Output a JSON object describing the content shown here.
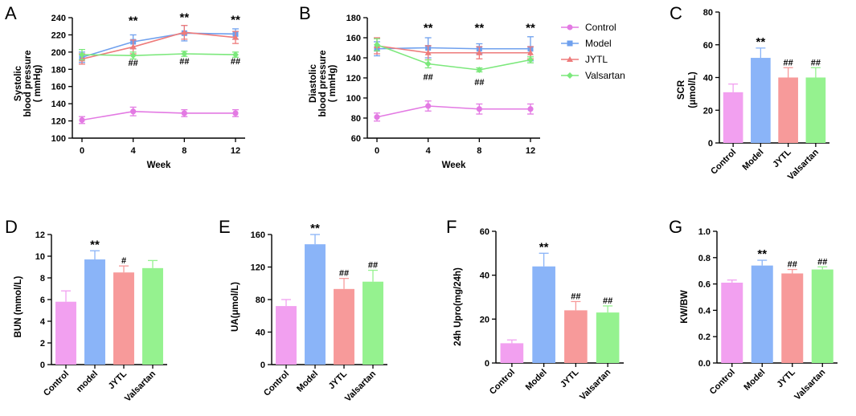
{
  "figure": {
    "colors": {
      "Control": "#F2A0F0",
      "Model": "#8AB4F8",
      "JYTL": "#F79A9A",
      "Valsartan": "#95F28F",
      "control_line": "#E37AE3",
      "model_line": "#6FA0EE",
      "jytl_line": "#EE7B7B",
      "valsartan_line": "#7CE87C"
    },
    "legend": [
      "Control",
      "Model",
      "JYTL",
      "Valsartan"
    ]
  },
  "chart_data": [
    {
      "panel": "A",
      "type": "line",
      "xlabel": "Week",
      "ylabel": "Systolic blood pressure ( mmHg)",
      "ylabel_lines": [
        "Systolic",
        "blood pressure",
        "( mmHg)"
      ],
      "x": [
        0,
        4,
        8,
        12
      ],
      "xticks": [
        "0",
        "4",
        "8",
        "12"
      ],
      "ylim": [
        100,
        240
      ],
      "yticks": [
        "100",
        "120",
        "140",
        "160",
        "180",
        "200",
        "220",
        "240"
      ],
      "series": [
        {
          "name": "Control",
          "values": [
            121,
            131,
            129,
            129
          ],
          "err": [
            4,
            5,
            4,
            4
          ]
        },
        {
          "name": "Model",
          "values": [
            194,
            212,
            222,
            221
          ],
          "err": [
            6,
            8,
            9,
            6
          ]
        },
        {
          "name": "JYTL",
          "values": [
            192,
            206,
            223,
            217
          ],
          "err": [
            6,
            8,
            8,
            7
          ]
        },
        {
          "name": "Valsartan",
          "values": [
            197,
            196,
            198,
            197
          ],
          "err": [
            6,
            4,
            3,
            3
          ]
        }
      ],
      "annotations": [
        {
          "x": 4,
          "y": 232,
          "text": "**",
          "kind": "star"
        },
        {
          "x": 8,
          "y": 236,
          "text": "**",
          "kind": "star"
        },
        {
          "x": 12,
          "y": 233,
          "text": "**",
          "kind": "star"
        },
        {
          "x": 4,
          "y": 184,
          "text": "##",
          "kind": "hash"
        },
        {
          "x": 8,
          "y": 186,
          "text": "##",
          "kind": "hash"
        },
        {
          "x": 12,
          "y": 186,
          "text": "##",
          "kind": "hash"
        }
      ]
    },
    {
      "panel": "B",
      "type": "line",
      "xlabel": "Week",
      "ylabel": "Diastolic blood pressure ( mmHg)",
      "ylabel_lines": [
        "Diastolic",
        "blood pressure",
        "( mmHg)"
      ],
      "x": [
        0,
        4,
        8,
        12
      ],
      "xticks": [
        "0",
        "4",
        "8",
        "12"
      ],
      "ylim": [
        60,
        180
      ],
      "yticks": [
        "60",
        "80",
        "100",
        "120",
        "140",
        "160",
        "180"
      ],
      "series": [
        {
          "name": "Control",
          "values": [
            81,
            92,
            89,
            89
          ],
          "err": [
            4,
            5,
            5,
            5
          ]
        },
        {
          "name": "Model",
          "values": [
            149,
            150,
            149,
            149
          ],
          "err": [
            7,
            10,
            5,
            12
          ]
        },
        {
          "name": "JYTL",
          "values": [
            152,
            145,
            145,
            145
          ],
          "err": [
            8,
            7,
            6,
            6
          ]
        },
        {
          "name": "Valsartan",
          "values": [
            153,
            134,
            128,
            138
          ],
          "err": [
            6,
            4,
            2,
            3
          ]
        }
      ],
      "annotations": [
        {
          "x": 4,
          "y": 166,
          "text": "**",
          "kind": "star"
        },
        {
          "x": 8,
          "y": 166,
          "text": "**",
          "kind": "star"
        },
        {
          "x": 12,
          "y": 166,
          "text": "**",
          "kind": "star"
        },
        {
          "x": 4,
          "y": 118,
          "text": "##",
          "kind": "hash"
        },
        {
          "x": 8,
          "y": 113,
          "text": "##",
          "kind": "hash"
        }
      ]
    },
    {
      "panel": "C",
      "type": "bar",
      "ylabel": "SCR (μmol/L)",
      "ylabel_lines": [
        "SCR",
        "(μmol/L)"
      ],
      "categories": [
        "Control",
        "Model",
        "JYTL",
        "Valsartan"
      ],
      "values": [
        31,
        52,
        40,
        40
      ],
      "err": [
        5,
        6,
        6,
        6
      ],
      "ylim": [
        0,
        80
      ],
      "yticks": [
        "0",
        "20",
        "40",
        "60",
        "80"
      ],
      "labels": [
        "",
        "**",
        "##",
        "##"
      ]
    },
    {
      "panel": "D",
      "type": "bar",
      "ylabel": "BUN (mmol/L)",
      "categories": [
        "Control",
        "model",
        "JYTL",
        "Valsartan"
      ],
      "values": [
        5.8,
        9.7,
        8.5,
        8.9
      ],
      "err": [
        1.0,
        0.8,
        0.6,
        0.7
      ],
      "ylim": [
        0,
        12
      ],
      "yticks": [
        "0",
        "2",
        "4",
        "6",
        "8",
        "10",
        "12"
      ],
      "labels": [
        "",
        "**",
        "#",
        ""
      ]
    },
    {
      "panel": "E",
      "type": "bar",
      "ylabel": "UA(μmol/L)",
      "categories": [
        "Control",
        "Model",
        "JYTL",
        "Valsartan"
      ],
      "values": [
        72,
        148,
        93,
        102
      ],
      "err": [
        8,
        12,
        13,
        14
      ],
      "ylim": [
        0,
        160
      ],
      "yticks": [
        "0",
        "40",
        "80",
        "120",
        "160"
      ],
      "labels": [
        "",
        "**",
        "##",
        "##"
      ]
    },
    {
      "panel": "F",
      "type": "bar",
      "ylabel": "24h Upro(mg/24h)",
      "categories": [
        "Control",
        "Model",
        "JYTL",
        "Valsartan"
      ],
      "values": [
        9,
        44,
        24,
        23
      ],
      "err": [
        1.5,
        6,
        4,
        3
      ],
      "ylim": [
        0,
        60
      ],
      "yticks": [
        "0",
        "20",
        "40",
        "60"
      ],
      "labels": [
        "",
        "**",
        "##",
        "##"
      ]
    },
    {
      "panel": "G",
      "type": "bar",
      "ylabel": "KW/BW",
      "categories": [
        "Control",
        "Model",
        "JYTL",
        "Valsartan"
      ],
      "values": [
        0.61,
        0.74,
        0.68,
        0.71
      ],
      "err": [
        0.02,
        0.04,
        0.03,
        0.02
      ],
      "ylim": [
        0,
        1.0
      ],
      "yticks": [
        "0.0",
        "0.2",
        "0.4",
        "0.6",
        "0.8",
        "1.0"
      ],
      "labels": [
        "",
        "**",
        "##",
        "##"
      ]
    }
  ]
}
